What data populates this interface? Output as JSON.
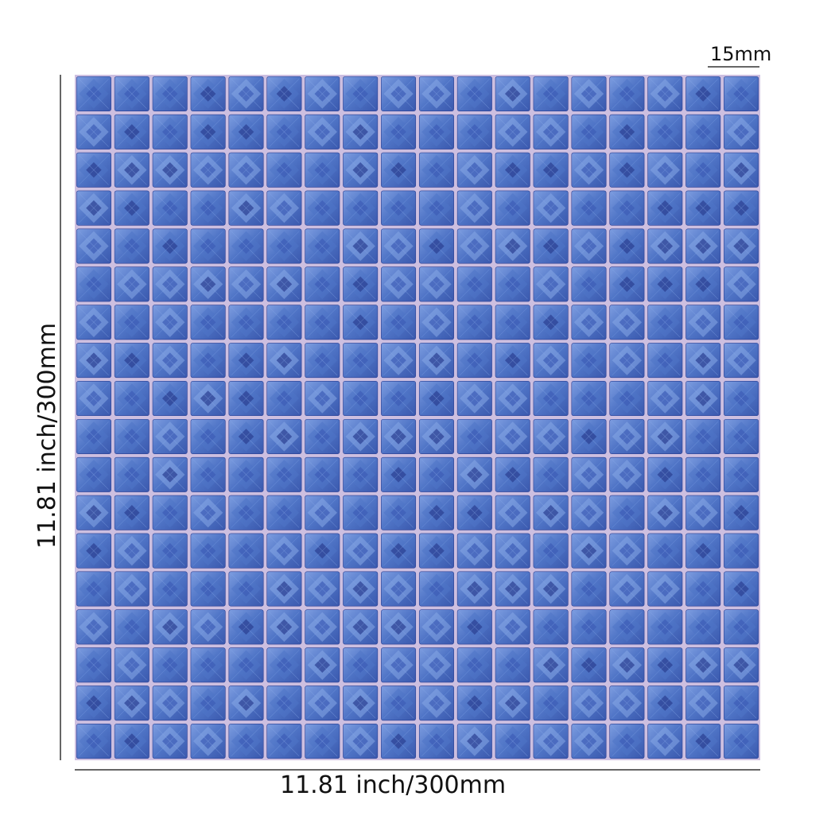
{
  "product": {
    "name": "blue faceted glass mosaic tile sheet",
    "grid": {
      "columns": 18,
      "rows": 18
    },
    "colors": {
      "tile_base": "#4f74c6",
      "tile_light": "#86a7e6",
      "tile_dark": "#2b3f92",
      "grout": "#cdbfe0",
      "dimension_line": "#333333"
    }
  },
  "dimensions": {
    "tile_size": "15mm",
    "width": "11.81 inch/300mm",
    "height": "11.81 inch/300mm"
  }
}
